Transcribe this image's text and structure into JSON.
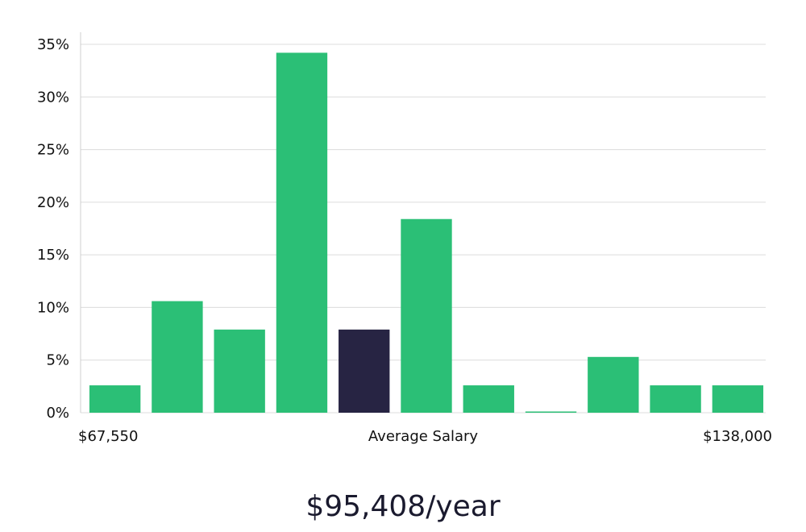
{
  "headline": "$95,408/year",
  "colors": {
    "bar": "#2bbf76",
    "highlight": "#272443",
    "grid": "#dcdcdc"
  },
  "chart_data": {
    "type": "bar",
    "title": "",
    "xlabel": "Average Salary",
    "ylabel": "",
    "x_min_label": "$67,550",
    "x_max_label": "$138,000",
    "ylim": [
      0,
      35
    ],
    "yticks": [
      "0%",
      "5%",
      "10%",
      "15%",
      "20%",
      "25%",
      "30%",
      "35%"
    ],
    "ytick_values": [
      0,
      5,
      10,
      15,
      20,
      25,
      30,
      35
    ],
    "values": [
      2.6,
      10.6,
      7.9,
      34.2,
      7.9,
      18.4,
      2.6,
      0,
      5.3,
      2.6,
      2.6
    ],
    "highlight_index": 4,
    "grid": true
  }
}
